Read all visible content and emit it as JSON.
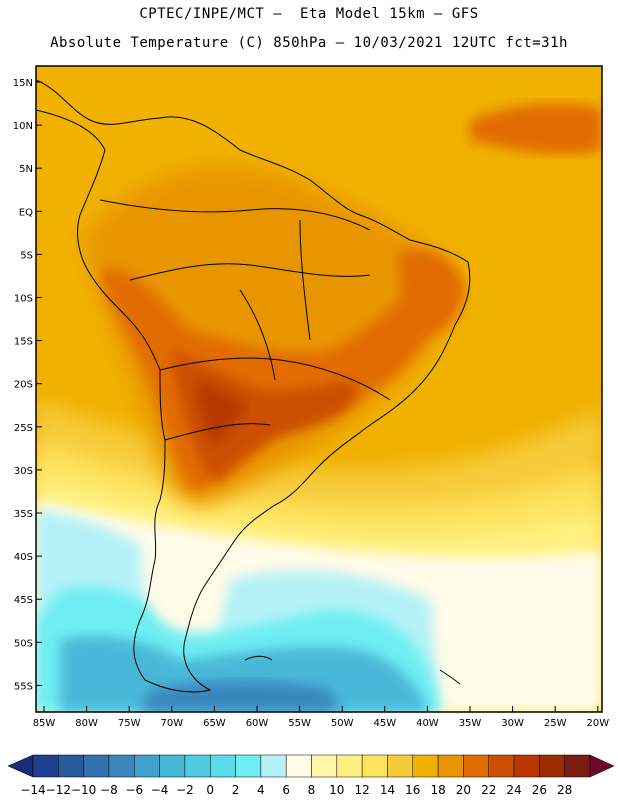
{
  "header": {
    "line1": "CPTEC/INPE/MCT –  Eta Model 15km – GFS",
    "line2": "Absolute Temperature (C) 850hPa – 10/03/2021 12UTC fct=31h"
  },
  "axes": {
    "lat_labels": [
      "15N",
      "10N",
      "5N",
      "EQ",
      "5S",
      "10S",
      "15S",
      "20S",
      "25S",
      "30S",
      "35S",
      "40S",
      "45S",
      "50S",
      "55S"
    ],
    "lon_labels": [
      "85W",
      "80W",
      "75W",
      "70W",
      "65W",
      "60W",
      "55W",
      "50W",
      "45W",
      "40W",
      "35W",
      "30W",
      "25W",
      "20W"
    ]
  },
  "colorbar": {
    "labels": [
      "-14",
      "-12",
      "-10",
      "-8",
      "-6",
      "-4",
      "-2",
      "0",
      "2",
      "4",
      "6",
      "8",
      "10",
      "12",
      "14",
      "16",
      "18",
      "20",
      "22",
      "24",
      "26",
      "28"
    ],
    "colors": [
      "#1f3f8f",
      "#2a5a9e",
      "#3370ad",
      "#3b87bd",
      "#42a0cc",
      "#48b8d8",
      "#4fcbe2",
      "#5adbea",
      "#6eeef2",
      "#b4f2f7",
      "#fffbe8",
      "#fff8a8",
      "#fff080",
      "#fde25c",
      "#f6cb3a",
      "#f0b100",
      "#e89600",
      "#e26c00",
      "#cc4f00",
      "#b83800",
      "#9e2a00",
      "#7a1c10"
    ],
    "low_arrow_color": "#1a2b77",
    "high_arrow_color": "#6b0a2a"
  },
  "field_colors": {
    "base": "#f0b100",
    "warm": "#e89600",
    "hot": "#e26c00",
    "hotter": "#cc4f00",
    "hottest": "#b83800",
    "cool1": "#f6cb3a",
    "cool2": "#fde25c",
    "cool3": "#fff080",
    "pale": "#fffbe8",
    "ice1": "#b4f2f7",
    "ice2": "#6eeef2",
    "ice3": "#48b8d8",
    "ice4": "#3b87bd"
  }
}
